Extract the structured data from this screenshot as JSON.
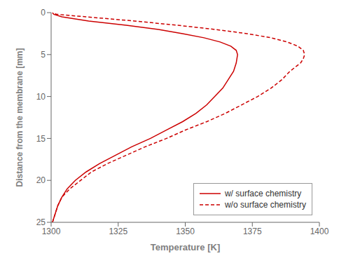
{
  "chart_data": {
    "type": "line",
    "xlabel": "Temperature [K]",
    "ylabel": "Distance from the membrane [mm]",
    "xlim": [
      1300,
      1400
    ],
    "ylim": [
      25,
      0
    ],
    "xticks": [
      1300,
      1325,
      1350,
      1375,
      1400
    ],
    "yticks": [
      0,
      5,
      10,
      15,
      20,
      25
    ],
    "grid": false,
    "legend": "lower right",
    "series": [
      {
        "name": "w/ surface chemistry",
        "color": "#cc0000",
        "line_style": "solid",
        "x": [
          1300.5,
          1301.0,
          1301.5,
          1302.5,
          1304,
          1306,
          1309,
          1313,
          1318,
          1324,
          1330,
          1337,
          1343,
          1349,
          1354,
          1358,
          1361,
          1364,
          1366,
          1368,
          1369,
          1369.5,
          1369,
          1367,
          1363,
          1357,
          1349,
          1340,
          1328,
          1314,
          1304,
          1301,
          1300.5
        ],
        "values": [
          25,
          24.5,
          24,
          23,
          22,
          21,
          20,
          19,
          18,
          17,
          16,
          15,
          14,
          13,
          12,
          11,
          10,
          9,
          8,
          7,
          6,
          5,
          4.5,
          4,
          3.5,
          3,
          2.5,
          2,
          1.5,
          1,
          0.5,
          0.2,
          0
        ]
      },
      {
        "name": "w/o surface chemistry",
        "color": "#cc0000",
        "line_style": "dashed",
        "x": [
          1300.5,
          1301.0,
          1301.5,
          1302.5,
          1304,
          1307,
          1311,
          1315,
          1321,
          1328,
          1335,
          1343,
          1350,
          1358,
          1365,
          1371,
          1377,
          1382,
          1386,
          1389,
          1391,
          1393,
          1394,
          1394.5,
          1394,
          1392,
          1388,
          1382,
          1373,
          1361,
          1347,
          1331,
          1313,
          1302,
          1300.5
        ],
        "values": [
          25,
          24.5,
          24,
          23,
          22,
          21,
          20,
          19,
          18,
          17,
          16,
          15,
          14,
          13,
          12,
          11,
          10,
          9,
          8,
          7,
          6.5,
          6,
          5.5,
          5,
          4.5,
          4,
          3.5,
          3,
          2.5,
          2,
          1.5,
          1,
          0.5,
          0.2,
          0
        ]
      }
    ]
  }
}
